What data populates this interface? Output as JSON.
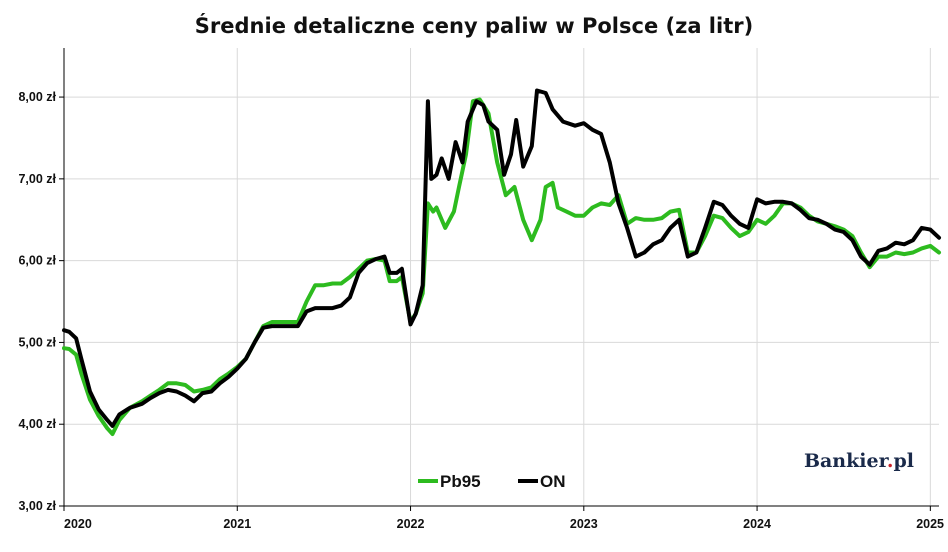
{
  "chart_data": {
    "type": "line",
    "title": "Średnie detaliczne ceny paliw w Polsce (za litr)",
    "xlabel": "",
    "ylabel": "",
    "ylim": [
      3.0,
      8.6
    ],
    "xlim": [
      2020.0,
      2025.05
    ],
    "y_ticks": [
      {
        "value": 3.0,
        "label": "3,00 zł"
      },
      {
        "value": 4.0,
        "label": "4,00 zł"
      },
      {
        "value": 5.0,
        "label": "5,00 zł"
      },
      {
        "value": 6.0,
        "label": "6,00 zł"
      },
      {
        "value": 7.0,
        "label": "7,00 zł"
      },
      {
        "value": 8.0,
        "label": "8,00 zł"
      }
    ],
    "x_ticks": [
      {
        "value": 2020,
        "label": "2020"
      },
      {
        "value": 2021,
        "label": "2021"
      },
      {
        "value": 2022,
        "label": "2022"
      },
      {
        "value": 2023,
        "label": "2023"
      },
      {
        "value": 2024,
        "label": "2024"
      },
      {
        "value": 2025,
        "label": "2025"
      }
    ],
    "grid": true,
    "legend_position": "bottom-center",
    "brand_text": {
      "main": "Bankier",
      "dot": ".",
      "tld": "pl"
    },
    "colors": {
      "Pb95": "#2dbb1f",
      "ON": "#000000",
      "brand_main": "#1a2a4a",
      "brand_dot": "#c8242b"
    },
    "series": [
      {
        "name": "Pb95",
        "points": [
          [
            2020.0,
            4.93
          ],
          [
            2020.03,
            4.92
          ],
          [
            2020.07,
            4.85
          ],
          [
            2020.1,
            4.62
          ],
          [
            2020.15,
            4.3
          ],
          [
            2020.2,
            4.1
          ],
          [
            2020.25,
            3.95
          ],
          [
            2020.28,
            3.88
          ],
          [
            2020.32,
            4.05
          ],
          [
            2020.38,
            4.2
          ],
          [
            2020.45,
            4.28
          ],
          [
            2020.5,
            4.35
          ],
          [
            2020.55,
            4.42
          ],
          [
            2020.6,
            4.5
          ],
          [
            2020.65,
            4.5
          ],
          [
            2020.7,
            4.48
          ],
          [
            2020.75,
            4.4
          ],
          [
            2020.8,
            4.42
          ],
          [
            2020.85,
            4.45
          ],
          [
            2020.9,
            4.55
          ],
          [
            2020.95,
            4.62
          ],
          [
            2021.0,
            4.7
          ],
          [
            2021.05,
            4.8
          ],
          [
            2021.1,
            5.0
          ],
          [
            2021.15,
            5.2
          ],
          [
            2021.2,
            5.25
          ],
          [
            2021.25,
            5.25
          ],
          [
            2021.3,
            5.25
          ],
          [
            2021.35,
            5.25
          ],
          [
            2021.4,
            5.5
          ],
          [
            2021.45,
            5.7
          ],
          [
            2021.5,
            5.7
          ],
          [
            2021.55,
            5.72
          ],
          [
            2021.6,
            5.72
          ],
          [
            2021.65,
            5.8
          ],
          [
            2021.7,
            5.9
          ],
          [
            2021.75,
            6.0
          ],
          [
            2021.8,
            6.02
          ],
          [
            2021.85,
            6.0
          ],
          [
            2021.88,
            5.75
          ],
          [
            2021.92,
            5.75
          ],
          [
            2021.95,
            5.8
          ],
          [
            2022.0,
            5.25
          ],
          [
            2022.03,
            5.35
          ],
          [
            2022.07,
            5.6
          ],
          [
            2022.1,
            6.7
          ],
          [
            2022.13,
            6.6
          ],
          [
            2022.15,
            6.65
          ],
          [
            2022.2,
            6.4
          ],
          [
            2022.25,
            6.6
          ],
          [
            2022.28,
            6.9
          ],
          [
            2022.32,
            7.3
          ],
          [
            2022.36,
            7.95
          ],
          [
            2022.4,
            7.97
          ],
          [
            2022.45,
            7.8
          ],
          [
            2022.5,
            7.2
          ],
          [
            2022.55,
            6.8
          ],
          [
            2022.6,
            6.9
          ],
          [
            2022.65,
            6.5
          ],
          [
            2022.7,
            6.25
          ],
          [
            2022.75,
            6.5
          ],
          [
            2022.78,
            6.9
          ],
          [
            2022.82,
            6.95
          ],
          [
            2022.85,
            6.65
          ],
          [
            2022.9,
            6.6
          ],
          [
            2022.95,
            6.55
          ],
          [
            2023.0,
            6.55
          ],
          [
            2023.05,
            6.65
          ],
          [
            2023.1,
            6.7
          ],
          [
            2023.15,
            6.68
          ],
          [
            2023.2,
            6.8
          ],
          [
            2023.25,
            6.45
          ],
          [
            2023.3,
            6.52
          ],
          [
            2023.35,
            6.5
          ],
          [
            2023.4,
            6.5
          ],
          [
            2023.45,
            6.52
          ],
          [
            2023.5,
            6.6
          ],
          [
            2023.55,
            6.62
          ],
          [
            2023.6,
            6.1
          ],
          [
            2023.65,
            6.1
          ],
          [
            2023.7,
            6.3
          ],
          [
            2023.75,
            6.55
          ],
          [
            2023.8,
            6.52
          ],
          [
            2023.85,
            6.4
          ],
          [
            2023.9,
            6.3
          ],
          [
            2023.95,
            6.35
          ],
          [
            2024.0,
            6.5
          ],
          [
            2024.05,
            6.45
          ],
          [
            2024.1,
            6.55
          ],
          [
            2024.15,
            6.7
          ],
          [
            2024.2,
            6.7
          ],
          [
            2024.25,
            6.65
          ],
          [
            2024.3,
            6.55
          ],
          [
            2024.35,
            6.48
          ],
          [
            2024.4,
            6.45
          ],
          [
            2024.45,
            6.42
          ],
          [
            2024.5,
            6.38
          ],
          [
            2024.55,
            6.3
          ],
          [
            2024.6,
            6.1
          ],
          [
            2024.65,
            5.92
          ],
          [
            2024.7,
            6.05
          ],
          [
            2024.75,
            6.05
          ],
          [
            2024.8,
            6.1
          ],
          [
            2024.85,
            6.08
          ],
          [
            2024.9,
            6.1
          ],
          [
            2024.95,
            6.15
          ],
          [
            2025.0,
            6.18
          ],
          [
            2025.05,
            6.1
          ]
        ]
      },
      {
        "name": "ON",
        "points": [
          [
            2020.0,
            5.15
          ],
          [
            2020.03,
            5.13
          ],
          [
            2020.07,
            5.05
          ],
          [
            2020.1,
            4.8
          ],
          [
            2020.15,
            4.4
          ],
          [
            2020.2,
            4.18
          ],
          [
            2020.25,
            4.05
          ],
          [
            2020.28,
            3.98
          ],
          [
            2020.32,
            4.12
          ],
          [
            2020.38,
            4.2
          ],
          [
            2020.45,
            4.25
          ],
          [
            2020.5,
            4.32
          ],
          [
            2020.55,
            4.38
          ],
          [
            2020.6,
            4.42
          ],
          [
            2020.65,
            4.4
          ],
          [
            2020.7,
            4.35
          ],
          [
            2020.75,
            4.28
          ],
          [
            2020.8,
            4.38
          ],
          [
            2020.85,
            4.4
          ],
          [
            2020.9,
            4.5
          ],
          [
            2020.95,
            4.58
          ],
          [
            2021.0,
            4.68
          ],
          [
            2021.05,
            4.8
          ],
          [
            2021.1,
            5.0
          ],
          [
            2021.15,
            5.18
          ],
          [
            2021.2,
            5.2
          ],
          [
            2021.25,
            5.2
          ],
          [
            2021.3,
            5.2
          ],
          [
            2021.35,
            5.2
          ],
          [
            2021.4,
            5.38
          ],
          [
            2021.45,
            5.42
          ],
          [
            2021.5,
            5.42
          ],
          [
            2021.55,
            5.42
          ],
          [
            2021.6,
            5.45
          ],
          [
            2021.65,
            5.55
          ],
          [
            2021.7,
            5.85
          ],
          [
            2021.75,
            5.97
          ],
          [
            2021.8,
            6.02
          ],
          [
            2021.85,
            6.05
          ],
          [
            2021.88,
            5.85
          ],
          [
            2021.92,
            5.85
          ],
          [
            2021.95,
            5.9
          ],
          [
            2022.0,
            5.22
          ],
          [
            2022.03,
            5.35
          ],
          [
            2022.07,
            5.7
          ],
          [
            2022.1,
            7.95
          ],
          [
            2022.12,
            7.0
          ],
          [
            2022.15,
            7.05
          ],
          [
            2022.18,
            7.25
          ],
          [
            2022.22,
            7.0
          ],
          [
            2022.26,
            7.45
          ],
          [
            2022.3,
            7.2
          ],
          [
            2022.33,
            7.7
          ],
          [
            2022.38,
            7.95
          ],
          [
            2022.42,
            7.9
          ],
          [
            2022.45,
            7.7
          ],
          [
            2022.5,
            7.6
          ],
          [
            2022.54,
            7.05
          ],
          [
            2022.58,
            7.3
          ],
          [
            2022.61,
            7.72
          ],
          [
            2022.65,
            7.15
          ],
          [
            2022.7,
            7.4
          ],
          [
            2022.73,
            8.08
          ],
          [
            2022.78,
            8.05
          ],
          [
            2022.82,
            7.85
          ],
          [
            2022.88,
            7.7
          ],
          [
            2022.95,
            7.65
          ],
          [
            2023.0,
            7.68
          ],
          [
            2023.05,
            7.6
          ],
          [
            2023.1,
            7.55
          ],
          [
            2023.15,
            7.2
          ],
          [
            2023.2,
            6.7
          ],
          [
            2023.25,
            6.4
          ],
          [
            2023.3,
            6.05
          ],
          [
            2023.35,
            6.1
          ],
          [
            2023.4,
            6.2
          ],
          [
            2023.45,
            6.25
          ],
          [
            2023.5,
            6.4
          ],
          [
            2023.55,
            6.5
          ],
          [
            2023.6,
            6.05
          ],
          [
            2023.65,
            6.1
          ],
          [
            2023.7,
            6.4
          ],
          [
            2023.75,
            6.72
          ],
          [
            2023.8,
            6.68
          ],
          [
            2023.85,
            6.55
          ],
          [
            2023.9,
            6.45
          ],
          [
            2023.95,
            6.4
          ],
          [
            2024.0,
            6.75
          ],
          [
            2024.05,
            6.7
          ],
          [
            2024.1,
            6.72
          ],
          [
            2024.15,
            6.72
          ],
          [
            2024.2,
            6.7
          ],
          [
            2024.25,
            6.62
          ],
          [
            2024.3,
            6.52
          ],
          [
            2024.35,
            6.5
          ],
          [
            2024.4,
            6.45
          ],
          [
            2024.45,
            6.38
          ],
          [
            2024.5,
            6.35
          ],
          [
            2024.55,
            6.25
          ],
          [
            2024.6,
            6.05
          ],
          [
            2024.65,
            5.95
          ],
          [
            2024.7,
            6.12
          ],
          [
            2024.75,
            6.15
          ],
          [
            2024.8,
            6.22
          ],
          [
            2024.85,
            6.2
          ],
          [
            2024.9,
            6.25
          ],
          [
            2024.95,
            6.4
          ],
          [
            2025.0,
            6.38
          ],
          [
            2025.05,
            6.28
          ]
        ]
      }
    ]
  }
}
